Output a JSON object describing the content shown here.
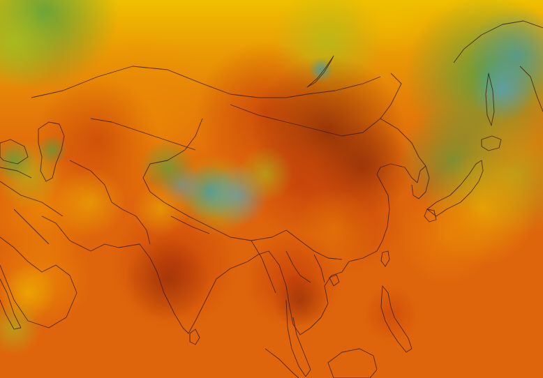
{
  "map": {
    "type": "temperature-heatmap",
    "region": "Asia",
    "labels_visible": false,
    "legend_visible": false
  },
  "palette": {
    "cold_blue": "#5aa0c8",
    "teal": "#4a9aa0",
    "green": "#58a040",
    "yellow_green": "#a8c020",
    "yellow": "#f0c000",
    "orange": "#ec8a06",
    "ocean_orange": "#df650c",
    "red_orange": "#c8400a",
    "dark_red": "#8c2a08",
    "border": "#3a1a0a"
  }
}
